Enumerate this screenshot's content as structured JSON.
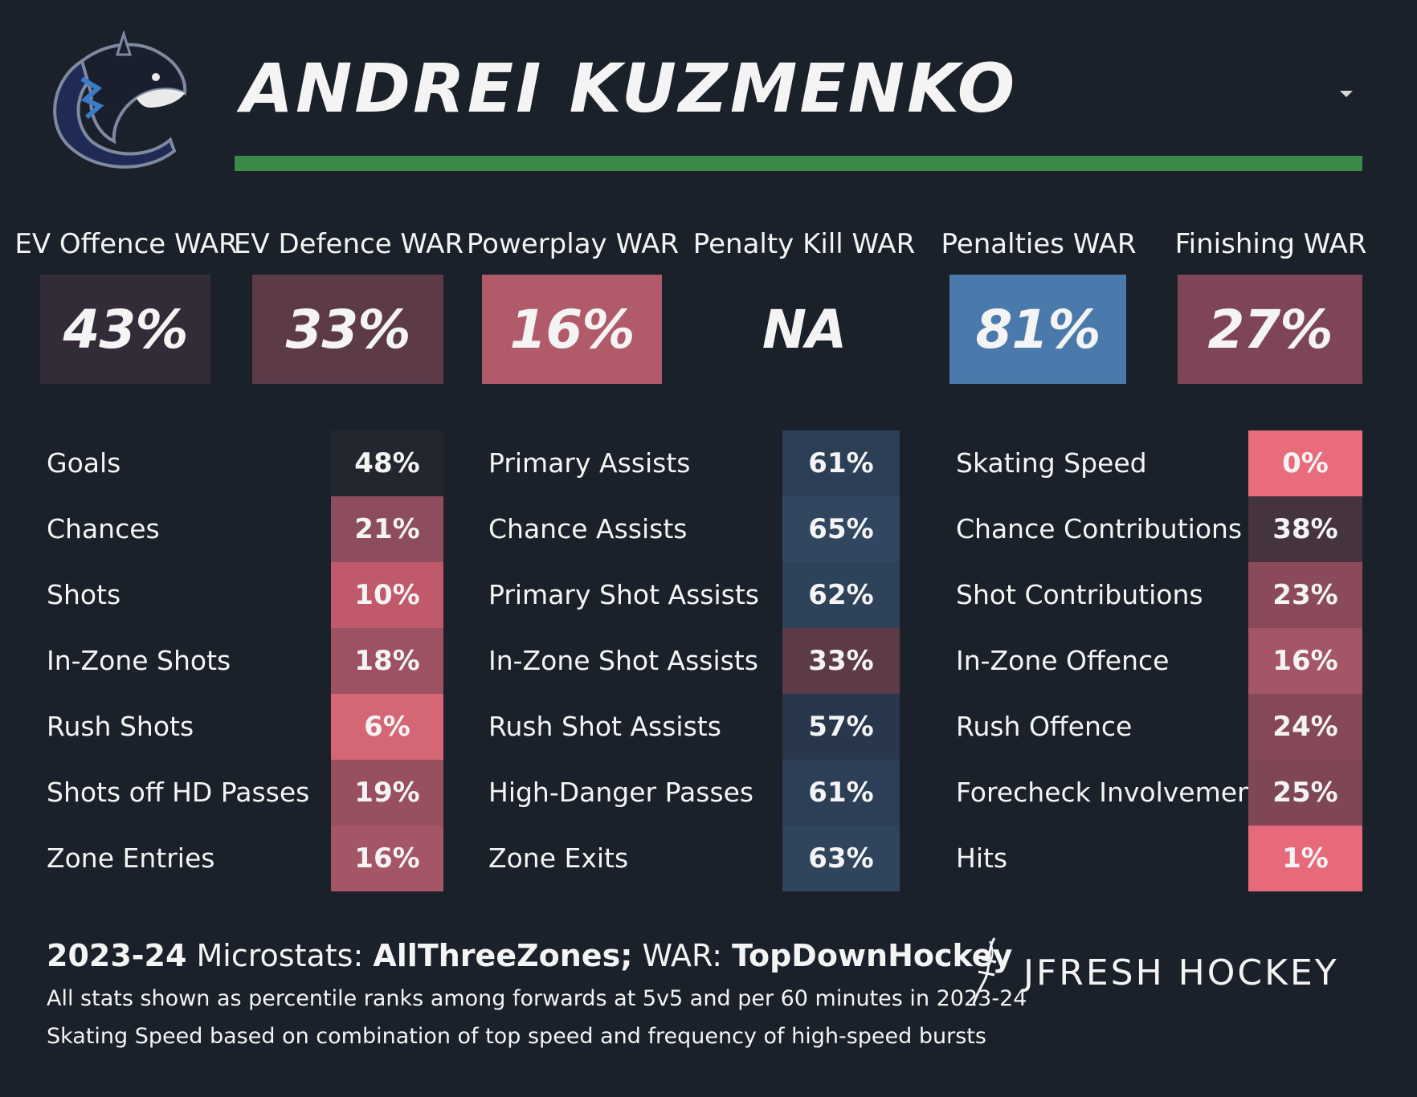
{
  "header": {
    "player_name": "ANDREI KUZMENKO",
    "team_logo_icon": "canucks-orca-logo-icon",
    "dropdown_icon": "caret-down-icon",
    "accent_color": "#3b8a4a"
  },
  "war": [
    {
      "label": "EV Offence WAR",
      "value": "43%",
      "color": "#332c38"
    },
    {
      "label": "EV Defence WAR",
      "value": "33%",
      "color": "#5c3a48"
    },
    {
      "label": "Powerplay WAR",
      "value": "16%",
      "color": "#b05a6a"
    },
    {
      "label": "Penalty Kill WAR",
      "value": "NA",
      "color": "#1b212a"
    },
    {
      "label": "Penalties WAR",
      "value": "81%",
      "color": "#4a7aab"
    },
    {
      "label": "Finishing WAR",
      "value": "27%",
      "color": "#7d4555"
    }
  ],
  "microstats": {
    "col1": [
      {
        "label": "Goals",
        "value": "48%",
        "color": "#23262e"
      },
      {
        "label": "Chances",
        "value": "21%",
        "color": "#8d4d5c"
      },
      {
        "label": "Shots",
        "value": "10%",
        "color": "#c05a6b"
      },
      {
        "label": "In-Zone Shots",
        "value": "18%",
        "color": "#9e5162"
      },
      {
        "label": "Rush Shots",
        "value": "6%",
        "color": "#d56676"
      },
      {
        "label": "Shots off HD Passes",
        "value": "19%",
        "color": "#985060"
      },
      {
        "label": "Zone Entries",
        "value": "16%",
        "color": "#a45566"
      }
    ],
    "col2": [
      {
        "label": "Primary Assists",
        "value": "61%",
        "color": "#2c3f56"
      },
      {
        "label": "Chance Assists",
        "value": "65%",
        "color": "#30475f"
      },
      {
        "label": "Primary Shot Assists",
        "value": "62%",
        "color": "#2e4259"
      },
      {
        "label": "In-Zone Shot Assists",
        "value": "33%",
        "color": "#5c3a48"
      },
      {
        "label": "Rush Shot Assists",
        "value": "57%",
        "color": "#28374c"
      },
      {
        "label": "High-Danger Passes",
        "value": "61%",
        "color": "#2c3f56"
      },
      {
        "label": "Zone Exits",
        "value": "63%",
        "color": "#30455c"
      }
    ],
    "col3": [
      {
        "label": "Skating Speed",
        "value": "0%",
        "color": "#e86c7c"
      },
      {
        "label": "Chance Contributions",
        "value": "38%",
        "color": "#45343f"
      },
      {
        "label": "Shot Contributions",
        "value": "23%",
        "color": "#8a4a59"
      },
      {
        "label": "In-Zone Offence",
        "value": "16%",
        "color": "#a45566"
      },
      {
        "label": "Rush Offence",
        "value": "24%",
        "color": "#854857"
      },
      {
        "label": "Forecheck Involvement",
        "value": "25%",
        "color": "#7f4656"
      },
      {
        "label": "Hits",
        "value": "1%",
        "color": "#e66a7a"
      }
    ]
  },
  "footer": {
    "season": "2023-24",
    "microstats_label": "Microstats:",
    "microstats_source": "AllThreeZones;",
    "war_label": "WAR:",
    "war_source": "TopDownHockey",
    "note1": "All stats shown as percentile ranks among forwards at 5v5 and per 60 minutes in 2023-24",
    "note2": "Skating Speed based on combination of top speed and frequency of high-speed bursts",
    "brand": "JFRESH HOCKEY",
    "brand_icon": "jfresh-signature-logo-icon"
  }
}
